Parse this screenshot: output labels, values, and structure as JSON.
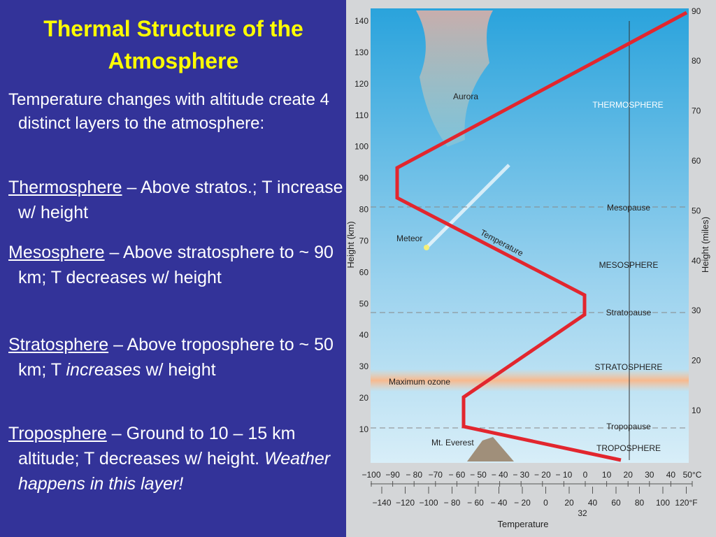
{
  "slide": {
    "title": "Thermal Structure of the Atmosphere",
    "intro": "Temperature changes with altitude create 4 distinct layers to the atmosphere:",
    "items": [
      {
        "term": "Thermosphere",
        "text": " – Above stratos.; T increase w/ height"
      },
      {
        "term": "Mesosphere",
        "text": " – Above stratosphere to ~ 90 km; T decreases w/ height"
      },
      {
        "term": "Stratosphere",
        "text": " – Above troposphere to ~ 50 km; T ",
        "italic": "increases",
        "after": " w/ height"
      },
      {
        "term": "Troposphere",
        "text": " – Ground to 10 – 15 km altitude; T decreases w/ height.  ",
        "italic": "Weather happens in this layer!"
      }
    ]
  },
  "figure": {
    "y_label": "Height (km)",
    "y2_label": "Height (miles)",
    "x_label": "Temperature",
    "km_ticks": [
      "10",
      "20",
      "30",
      "40",
      "50",
      "60",
      "70",
      "80",
      "90",
      "100",
      "110",
      "120",
      "130",
      "140"
    ],
    "mile_ticks": [
      "10",
      "20",
      "30",
      "40",
      "50",
      "60",
      "70",
      "80",
      "90"
    ],
    "celsius_ticks": [
      "−100",
      "−90",
      "− 80",
      "−70",
      "− 60",
      "− 50",
      "− 40",
      "− 30",
      "− 20",
      "− 10",
      "0",
      "10",
      "20",
      "30",
      "40",
      "50°C"
    ],
    "fahrenheit_ticks": [
      "−140",
      "−120",
      "−100",
      "− 80",
      "− 60",
      "− 40",
      "− 20",
      "0",
      "20",
      "40",
      "60",
      "80",
      "100",
      "120°F"
    ],
    "freezing": "32",
    "labels": {
      "aurora": "Aurora",
      "meteor": "Meteor",
      "temperature_curve": "Temperature",
      "ozone": "Maximum ozone",
      "everest": "Mt. Everest",
      "thermosphere": "THERMOSPHERE",
      "mesopause": "Mesopause",
      "mesosphere": "MESOSPHERE",
      "stratopause": "Stratopause",
      "stratosphere": "STRATOSPHERE",
      "tropopause": "Tropopause",
      "troposphere": "TROPOSPHERE"
    }
  }
}
